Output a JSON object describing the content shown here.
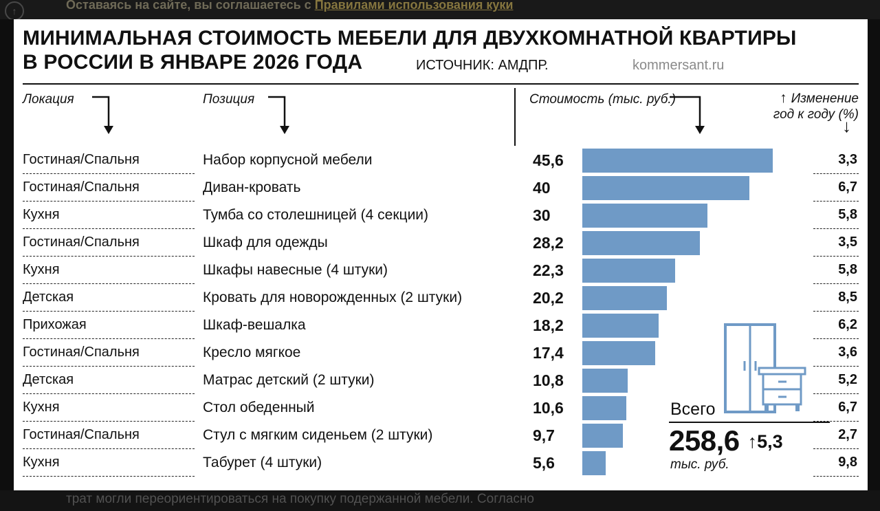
{
  "page": {
    "cookie_text": "Оставаясь на сайте, вы соглашаетесь с ",
    "cookie_link": "Правилами использования куки",
    "scroll_top_glyph": "↑",
    "bottom_text": "трат могли переориентироваться на покупку подержанной мебели. Согласно"
  },
  "infographic": {
    "title_line1": "МИНИМАЛЬНАЯ СТОИМОСТЬ МЕБЕЛИ ДЛЯ ДВУХКОМНАТНОЙ КВАРТИРЫ",
    "title_line2": "В РОССИИ В ЯНВАРЕ 2026 ГОДА",
    "source": "ИСТОЧНИК: АМДПР.",
    "site": "kommersant.ru",
    "col_location": "Локация",
    "col_item": "Позиция",
    "col_value": "Стоимость (тыс. руб.)",
    "col_change_line1": "Изменение",
    "col_change_line2": "год к году (%)",
    "up_arrow": "↑",
    "down_arrow": "↓",
    "total_label": "Всего",
    "total_value": "258,6",
    "total_change": "↑5,3",
    "total_unit": "тыс. руб.",
    "bar_color": "#6f9ac6"
  },
  "chart_data": {
    "type": "bar",
    "orientation": "horizontal",
    "title": "Минимальная стоимость мебели для двухкомнатной квартиры в России в январе 2026 года",
    "source": "АМДПР",
    "value_label": "Стоимость (тыс. руб.)",
    "change_label": "Изменение год к году (%)",
    "max_value": 45.6,
    "rows": [
      {
        "location": "Гостиная/Спальня",
        "item": "Набор корпусной мебели",
        "value": 45.6,
        "value_text": "45,6",
        "change": 3.3,
        "change_text": "3,3"
      },
      {
        "location": "Гостиная/Спальня",
        "item": "Диван-кровать",
        "value": 40,
        "value_text": "40",
        "change": 6.7,
        "change_text": "6,7"
      },
      {
        "location": "Кухня",
        "item": "Тумба со столешницей (4 секции)",
        "value": 30,
        "value_text": "30",
        "change": 5.8,
        "change_text": "5,8"
      },
      {
        "location": "Гостиная/Спальня",
        "item": "Шкаф для одежды",
        "value": 28.2,
        "value_text": "28,2",
        "change": 3.5,
        "change_text": "3,5"
      },
      {
        "location": "Кухня",
        "item": "Шкафы навесные (4 штуки)",
        "value": 22.3,
        "value_text": "22,3",
        "change": 5.8,
        "change_text": "5,8"
      },
      {
        "location": "Детская",
        "item": "Кровать для новорожденных (2 штуки)",
        "value": 20.2,
        "value_text": "20,2",
        "change": 8.5,
        "change_text": "8,5"
      },
      {
        "location": "Прихожая",
        "item": "Шкаф-вешалка",
        "value": 18.2,
        "value_text": "18,2",
        "change": 6.2,
        "change_text": "6,2"
      },
      {
        "location": "Гостиная/Спальня",
        "item": "Кресло мягкое",
        "value": 17.4,
        "value_text": "17,4",
        "change": 3.6,
        "change_text": "3,6"
      },
      {
        "location": "Детская",
        "item": "Матрас детский (2 штуки)",
        "value": 10.8,
        "value_text": "10,8",
        "change": 5.2,
        "change_text": "5,2"
      },
      {
        "location": "Кухня",
        "item": "Стол обеденный",
        "value": 10.6,
        "value_text": "10,6",
        "change": 6.7,
        "change_text": "6,7"
      },
      {
        "location": "Гостиная/Спальня",
        "item": "Стул с мягким сиденьем (2 штуки)",
        "value": 9.7,
        "value_text": "9,7",
        "change": 2.7,
        "change_text": "2,7"
      },
      {
        "location": "Кухня",
        "item": "Табурет (4 штуки)",
        "value": 5.6,
        "value_text": "5,6",
        "change": 9.8,
        "change_text": "9,8"
      }
    ],
    "total": {
      "label": "Всего",
      "value": 258.6,
      "value_text": "258,6",
      "unit": "тыс. руб.",
      "change": 5.3,
      "change_text": "↑5,3"
    }
  }
}
